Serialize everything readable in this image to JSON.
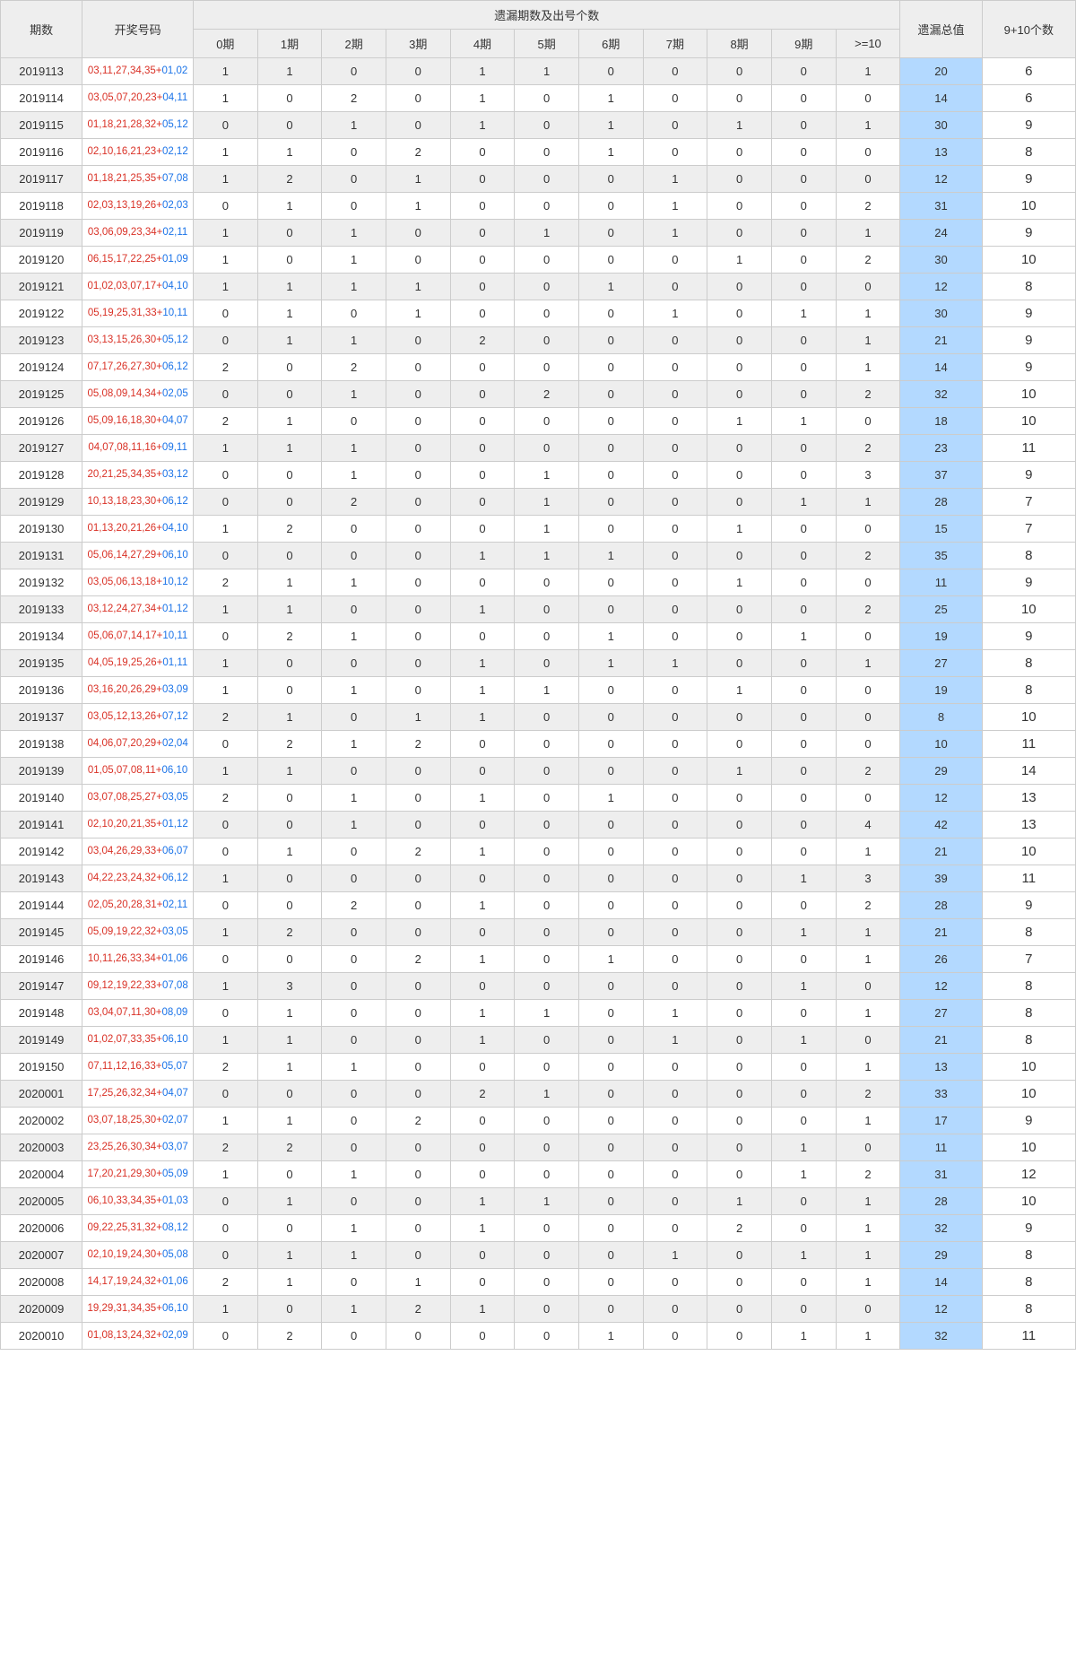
{
  "headers": {
    "period": "期数",
    "numbers": "开奖号码",
    "miss_group": "遗漏期数及出号个数",
    "miss_cols": [
      "0期",
      "1期",
      "2期",
      "3期",
      "4期",
      "5期",
      "6期",
      "7期",
      "8期",
      "9期",
      ">=10"
    ],
    "total": "遗漏总值",
    "count": "9+10个数"
  },
  "colors": {
    "header_bg": "#eeeeee",
    "border": "#cccccc",
    "red": "#d93025",
    "blue": "#1a73e8",
    "total_bg": "#b3d9ff",
    "text": "#333333"
  },
  "rows": [
    {
      "period": "2019113",
      "red": "03,11,27,34,35",
      "blue": "01,02",
      "miss": [
        1,
        1,
        0,
        0,
        1,
        1,
        0,
        0,
        0,
        0,
        1
      ],
      "total": 20,
      "count": 6
    },
    {
      "period": "2019114",
      "red": "03,05,07,20,23",
      "blue": "04,11",
      "miss": [
        1,
        0,
        2,
        0,
        1,
        0,
        1,
        0,
        0,
        0,
        0
      ],
      "total": 14,
      "count": 6
    },
    {
      "period": "2019115",
      "red": "01,18,21,28,32",
      "blue": "05,12",
      "miss": [
        0,
        0,
        1,
        0,
        1,
        0,
        1,
        0,
        1,
        0,
        1
      ],
      "total": 30,
      "count": 9
    },
    {
      "period": "2019116",
      "red": "02,10,16,21,23",
      "blue": "02,12",
      "miss": [
        1,
        1,
        0,
        2,
        0,
        0,
        1,
        0,
        0,
        0,
        0
      ],
      "total": 13,
      "count": 8
    },
    {
      "period": "2019117",
      "red": "01,18,21,25,35",
      "blue": "07,08",
      "miss": [
        1,
        2,
        0,
        1,
        0,
        0,
        0,
        1,
        0,
        0,
        0
      ],
      "total": 12,
      "count": 9
    },
    {
      "period": "2019118",
      "red": "02,03,13,19,26",
      "blue": "02,03",
      "miss": [
        0,
        1,
        0,
        1,
        0,
        0,
        0,
        1,
        0,
        0,
        2
      ],
      "total": 31,
      "count": 10
    },
    {
      "period": "2019119",
      "red": "03,06,09,23,34",
      "blue": "02,11",
      "miss": [
        1,
        0,
        1,
        0,
        0,
        1,
        0,
        1,
        0,
        0,
        1
      ],
      "total": 24,
      "count": 9
    },
    {
      "period": "2019120",
      "red": "06,15,17,22,25",
      "blue": "01,09",
      "miss": [
        1,
        0,
        1,
        0,
        0,
        0,
        0,
        0,
        1,
        0,
        2
      ],
      "total": 30,
      "count": 10
    },
    {
      "period": "2019121",
      "red": "01,02,03,07,17",
      "blue": "04,10",
      "miss": [
        1,
        1,
        1,
        1,
        0,
        0,
        1,
        0,
        0,
        0,
        0
      ],
      "total": 12,
      "count": 8
    },
    {
      "period": "2019122",
      "red": "05,19,25,31,33",
      "blue": "10,11",
      "miss": [
        0,
        1,
        0,
        1,
        0,
        0,
        0,
        1,
        0,
        1,
        1
      ],
      "total": 30,
      "count": 9
    },
    {
      "period": "2019123",
      "red": "03,13,15,26,30",
      "blue": "05,12",
      "miss": [
        0,
        1,
        1,
        0,
        2,
        0,
        0,
        0,
        0,
        0,
        1
      ],
      "total": 21,
      "count": 9
    },
    {
      "period": "2019124",
      "red": "07,17,26,27,30",
      "blue": "06,12",
      "miss": [
        2,
        0,
        2,
        0,
        0,
        0,
        0,
        0,
        0,
        0,
        1
      ],
      "total": 14,
      "count": 9
    },
    {
      "period": "2019125",
      "red": "05,08,09,14,34",
      "blue": "02,05",
      "miss": [
        0,
        0,
        1,
        0,
        0,
        2,
        0,
        0,
        0,
        0,
        2
      ],
      "total": 32,
      "count": 10
    },
    {
      "period": "2019126",
      "red": "05,09,16,18,30",
      "blue": "04,07",
      "miss": [
        2,
        1,
        0,
        0,
        0,
        0,
        0,
        0,
        1,
        1,
        0
      ],
      "total": 18,
      "count": 10
    },
    {
      "period": "2019127",
      "red": "04,07,08,11,16",
      "blue": "09,11",
      "miss": [
        1,
        1,
        1,
        0,
        0,
        0,
        0,
        0,
        0,
        0,
        2
      ],
      "total": 23,
      "count": 11
    },
    {
      "period": "2019128",
      "red": "20,21,25,34,35",
      "blue": "03,12",
      "miss": [
        0,
        0,
        1,
        0,
        0,
        1,
        0,
        0,
        0,
        0,
        3
      ],
      "total": 37,
      "count": 9
    },
    {
      "period": "2019129",
      "red": "10,13,18,23,30",
      "blue": "06,12",
      "miss": [
        0,
        0,
        2,
        0,
        0,
        1,
        0,
        0,
        0,
        1,
        1
      ],
      "total": 28,
      "count": 7
    },
    {
      "period": "2019130",
      "red": "01,13,20,21,26",
      "blue": "04,10",
      "miss": [
        1,
        2,
        0,
        0,
        0,
        1,
        0,
        0,
        1,
        0,
        0
      ],
      "total": 15,
      "count": 7
    },
    {
      "period": "2019131",
      "red": "05,06,14,27,29",
      "blue": "06,10",
      "miss": [
        0,
        0,
        0,
        0,
        1,
        1,
        1,
        0,
        0,
        0,
        2
      ],
      "total": 35,
      "count": 8
    },
    {
      "period": "2019132",
      "red": "03,05,06,13,18",
      "blue": "10,12",
      "miss": [
        2,
        1,
        1,
        0,
        0,
        0,
        0,
        0,
        1,
        0,
        0
      ],
      "total": 11,
      "count": 9
    },
    {
      "period": "2019133",
      "red": "03,12,24,27,34",
      "blue": "01,12",
      "miss": [
        1,
        1,
        0,
        0,
        1,
        0,
        0,
        0,
        0,
        0,
        2
      ],
      "total": 25,
      "count": 10
    },
    {
      "period": "2019134",
      "red": "05,06,07,14,17",
      "blue": "10,11",
      "miss": [
        0,
        2,
        1,
        0,
        0,
        0,
        1,
        0,
        0,
        1,
        0
      ],
      "total": 19,
      "count": 9
    },
    {
      "period": "2019135",
      "red": "04,05,19,25,26",
      "blue": "01,11",
      "miss": [
        1,
        0,
        0,
        0,
        1,
        0,
        1,
        1,
        0,
        0,
        1
      ],
      "total": 27,
      "count": 8
    },
    {
      "period": "2019136",
      "red": "03,16,20,26,29",
      "blue": "03,09",
      "miss": [
        1,
        0,
        1,
        0,
        1,
        1,
        0,
        0,
        1,
        0,
        0
      ],
      "total": 19,
      "count": 8
    },
    {
      "period": "2019137",
      "red": "03,05,12,13,26",
      "blue": "07,12",
      "miss": [
        2,
        1,
        0,
        1,
        1,
        0,
        0,
        0,
        0,
        0,
        0
      ],
      "total": 8,
      "count": 10
    },
    {
      "period": "2019138",
      "red": "04,06,07,20,29",
      "blue": "02,04",
      "miss": [
        0,
        2,
        1,
        2,
        0,
        0,
        0,
        0,
        0,
        0,
        0
      ],
      "total": 10,
      "count": 11
    },
    {
      "period": "2019139",
      "red": "01,05,07,08,11",
      "blue": "06,10",
      "miss": [
        1,
        1,
        0,
        0,
        0,
        0,
        0,
        0,
        1,
        0,
        2
      ],
      "total": 29,
      "count": 14
    },
    {
      "period": "2019140",
      "red": "03,07,08,25,27",
      "blue": "03,05",
      "miss": [
        2,
        0,
        1,
        0,
        1,
        0,
        1,
        0,
        0,
        0,
        0
      ],
      "total": 12,
      "count": 13
    },
    {
      "period": "2019141",
      "red": "02,10,20,21,35",
      "blue": "01,12",
      "miss": [
        0,
        0,
        1,
        0,
        0,
        0,
        0,
        0,
        0,
        0,
        4
      ],
      "total": 42,
      "count": 13
    },
    {
      "period": "2019142",
      "red": "03,04,26,29,33",
      "blue": "06,07",
      "miss": [
        0,
        1,
        0,
        2,
        1,
        0,
        0,
        0,
        0,
        0,
        1
      ],
      "total": 21,
      "count": 10
    },
    {
      "period": "2019143",
      "red": "04,22,23,24,32",
      "blue": "06,12",
      "miss": [
        1,
        0,
        0,
        0,
        0,
        0,
        0,
        0,
        0,
        1,
        3
      ],
      "total": 39,
      "count": 11
    },
    {
      "period": "2019144",
      "red": "02,05,20,28,31",
      "blue": "02,11",
      "miss": [
        0,
        0,
        2,
        0,
        1,
        0,
        0,
        0,
        0,
        0,
        2
      ],
      "total": 28,
      "count": 9
    },
    {
      "period": "2019145",
      "red": "05,09,19,22,32",
      "blue": "03,05",
      "miss": [
        1,
        2,
        0,
        0,
        0,
        0,
        0,
        0,
        0,
        1,
        1
      ],
      "total": 21,
      "count": 8
    },
    {
      "period": "2019146",
      "red": "10,11,26,33,34",
      "blue": "01,06",
      "miss": [
        0,
        0,
        0,
        2,
        1,
        0,
        1,
        0,
        0,
        0,
        1
      ],
      "total": 26,
      "count": 7
    },
    {
      "period": "2019147",
      "red": "09,12,19,22,33",
      "blue": "07,08",
      "miss": [
        1,
        3,
        0,
        0,
        0,
        0,
        0,
        0,
        0,
        1,
        0
      ],
      "total": 12,
      "count": 8
    },
    {
      "period": "2019148",
      "red": "03,04,07,11,30",
      "blue": "08,09",
      "miss": [
        0,
        1,
        0,
        0,
        1,
        1,
        0,
        1,
        0,
        0,
        1
      ],
      "total": 27,
      "count": 8
    },
    {
      "period": "2019149",
      "red": "01,02,07,33,35",
      "blue": "06,10",
      "miss": [
        1,
        1,
        0,
        0,
        1,
        0,
        0,
        1,
        0,
        1,
        0
      ],
      "total": 21,
      "count": 8
    },
    {
      "period": "2019150",
      "red": "07,11,12,16,33",
      "blue": "05,07",
      "miss": [
        2,
        1,
        1,
        0,
        0,
        0,
        0,
        0,
        0,
        0,
        1
      ],
      "total": 13,
      "count": 10
    },
    {
      "period": "2020001",
      "red": "17,25,26,32,34",
      "blue": "04,07",
      "miss": [
        0,
        0,
        0,
        0,
        2,
        1,
        0,
        0,
        0,
        0,
        2
      ],
      "total": 33,
      "count": 10
    },
    {
      "period": "2020002",
      "red": "03,07,18,25,30",
      "blue": "02,07",
      "miss": [
        1,
        1,
        0,
        2,
        0,
        0,
        0,
        0,
        0,
        0,
        1
      ],
      "total": 17,
      "count": 9
    },
    {
      "period": "2020003",
      "red": "23,25,26,30,34",
      "blue": "03,07",
      "miss": [
        2,
        2,
        0,
        0,
        0,
        0,
        0,
        0,
        0,
        1,
        0
      ],
      "total": 11,
      "count": 10
    },
    {
      "period": "2020004",
      "red": "17,20,21,29,30",
      "blue": "05,09",
      "miss": [
        1,
        0,
        1,
        0,
        0,
        0,
        0,
        0,
        0,
        1,
        2
      ],
      "total": 31,
      "count": 12
    },
    {
      "period": "2020005",
      "red": "06,10,33,34,35",
      "blue": "01,03",
      "miss": [
        0,
        1,
        0,
        0,
        1,
        1,
        0,
        0,
        1,
        0,
        1
      ],
      "total": 28,
      "count": 10
    },
    {
      "period": "2020006",
      "red": "09,22,25,31,32",
      "blue": "08,12",
      "miss": [
        0,
        0,
        1,
        0,
        1,
        0,
        0,
        0,
        2,
        0,
        1
      ],
      "total": 32,
      "count": 9
    },
    {
      "period": "2020007",
      "red": "02,10,19,24,30",
      "blue": "05,08",
      "miss": [
        0,
        1,
        1,
        0,
        0,
        0,
        0,
        1,
        0,
        1,
        1
      ],
      "total": 29,
      "count": 8
    },
    {
      "period": "2020008",
      "red": "14,17,19,24,32",
      "blue": "01,06",
      "miss": [
        2,
        1,
        0,
        1,
        0,
        0,
        0,
        0,
        0,
        0,
        1
      ],
      "total": 14,
      "count": 8
    },
    {
      "period": "2020009",
      "red": "19,29,31,34,35",
      "blue": "06,10",
      "miss": [
        1,
        0,
        1,
        2,
        1,
        0,
        0,
        0,
        0,
        0,
        0
      ],
      "total": 12,
      "count": 8
    },
    {
      "period": "2020010",
      "red": "01,08,13,24,32",
      "blue": "02,09",
      "miss": [
        0,
        2,
        0,
        0,
        0,
        0,
        1,
        0,
        0,
        1,
        1
      ],
      "total": 32,
      "count": 11
    }
  ]
}
